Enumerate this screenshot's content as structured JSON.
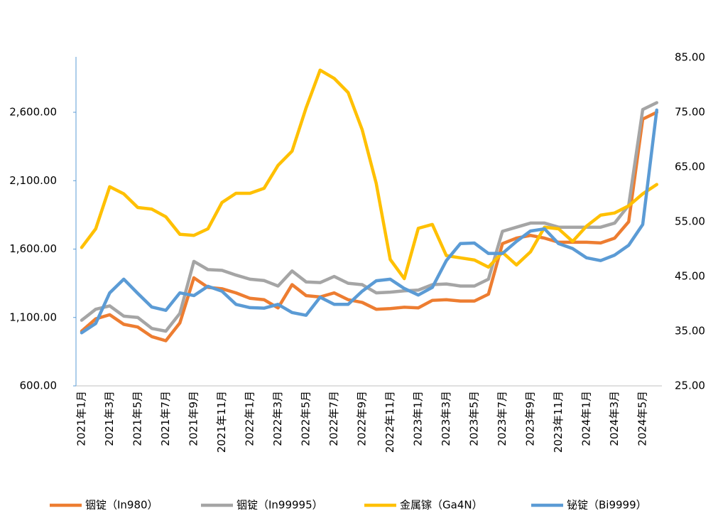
{
  "chart_data": {
    "type": "line",
    "categories": [
      "2021年1月",
      null,
      "2021年3月",
      null,
      "2021年5月",
      null,
      "2021年7月",
      null,
      "2021年9月",
      null,
      "2021年11月",
      null,
      "2022年1月",
      null,
      "2022年3月",
      null,
      "2022年5月",
      null,
      "2022年7月",
      null,
      "2022年9月",
      null,
      "2022年11月",
      null,
      "2023年1月",
      null,
      "2023年3月",
      null,
      "2023年5月",
      null,
      "2023年7月",
      null,
      "2023年9月",
      null,
      "2023年11月",
      null,
      "2024年1月",
      null,
      "2024年3月",
      null,
      "2024年5月",
      null
    ],
    "series": [
      {
        "name": "铟锭（In980）",
        "color": "#ed7d31",
        "values": [
          1000,
          1090,
          1120,
          1050,
          1030,
          960,
          930,
          1060,
          1390,
          1320,
          1310,
          1280,
          1240,
          1230,
          1170,
          1340,
          1260,
          1250,
          1280,
          1230,
          1210,
          1160,
          1165,
          1175,
          1170,
          1225,
          1230,
          1220,
          1220,
          1270,
          1640,
          1680,
          1700,
          1680,
          1650,
          1650,
          1650,
          1645,
          1680,
          1800,
          2550,
          2600
        ]
      },
      {
        "name": "铟锭（In99995）",
        "color": "#a5a5a5",
        "values": [
          1080,
          1160,
          1185,
          1110,
          1100,
          1020,
          1000,
          1130,
          1510,
          1450,
          1445,
          1410,
          1380,
          1370,
          1330,
          1440,
          1360,
          1355,
          1400,
          1350,
          1340,
          1280,
          1285,
          1295,
          1300,
          1340,
          1345,
          1330,
          1330,
          1380,
          1730,
          1760,
          1790,
          1790,
          1760,
          1760,
          1760,
          1760,
          1790,
          1920,
          2620,
          2670
        ]
      },
      {
        "name": "金属镓（Ga4N）",
        "color": "#ffc000",
        "axis": "y2",
        "values": [
          50.3,
          53.7,
          61.4,
          60.1,
          57.6,
          57.3,
          55.9,
          52.7,
          52.5,
          53.7,
          58.5,
          60.2,
          60.2,
          61.1,
          65.3,
          67.9,
          75.8,
          82.7,
          81.2,
          78.6,
          71.8,
          62,
          48.1,
          44.6,
          53.8,
          54.5,
          48.8,
          48.4,
          48,
          46.7,
          49.4,
          47.1,
          49.5,
          54,
          53.7,
          51.4,
          54.2,
          56.2,
          56.6,
          57.9,
          60.1,
          61.8
        ]
      },
      {
        "name": "铋锭（Bi9999）",
        "color": "#5b9bd5",
        "axis": "y2",
        "values": [
          34.7,
          36.4,
          42,
          44.5,
          41.9,
          39.4,
          38.8,
          42,
          41.5,
          43.2,
          42.3,
          39.9,
          39.3,
          39.2,
          39.9,
          38.4,
          37.9,
          41.2,
          39.9,
          39.9,
          42.3,
          44.2,
          44.5,
          42.8,
          41.6,
          43,
          47.9,
          51,
          51.1,
          49.2,
          49.2,
          51.4,
          53.3,
          53.7,
          51,
          50.1,
          48.4,
          47.9,
          48.9,
          50.7,
          54.5,
          75.4
        ]
      }
    ],
    "ylim": [
      600,
      3000
    ],
    "yticks": [
      {
        "value": 600,
        "label": "600.00"
      },
      {
        "value": 1100,
        "label": "1,100.00"
      },
      {
        "value": 1600,
        "label": "1,600.00"
      },
      {
        "value": 2100,
        "label": "2,100.00"
      },
      {
        "value": 2600,
        "label": "2,600.00"
      }
    ],
    "y2lim": [
      25,
      85
    ],
    "y2ticks": [
      {
        "value": 25,
        "label": "25.00"
      },
      {
        "value": 35,
        "label": "35.00"
      },
      {
        "value": 45,
        "label": "45.00"
      },
      {
        "value": 55,
        "label": "55.00"
      },
      {
        "value": 65,
        "label": "65.00"
      },
      {
        "value": 75,
        "label": "75.00"
      },
      {
        "value": 85,
        "label": "85.00"
      }
    ],
    "grid": false,
    "legend": "bottom"
  }
}
